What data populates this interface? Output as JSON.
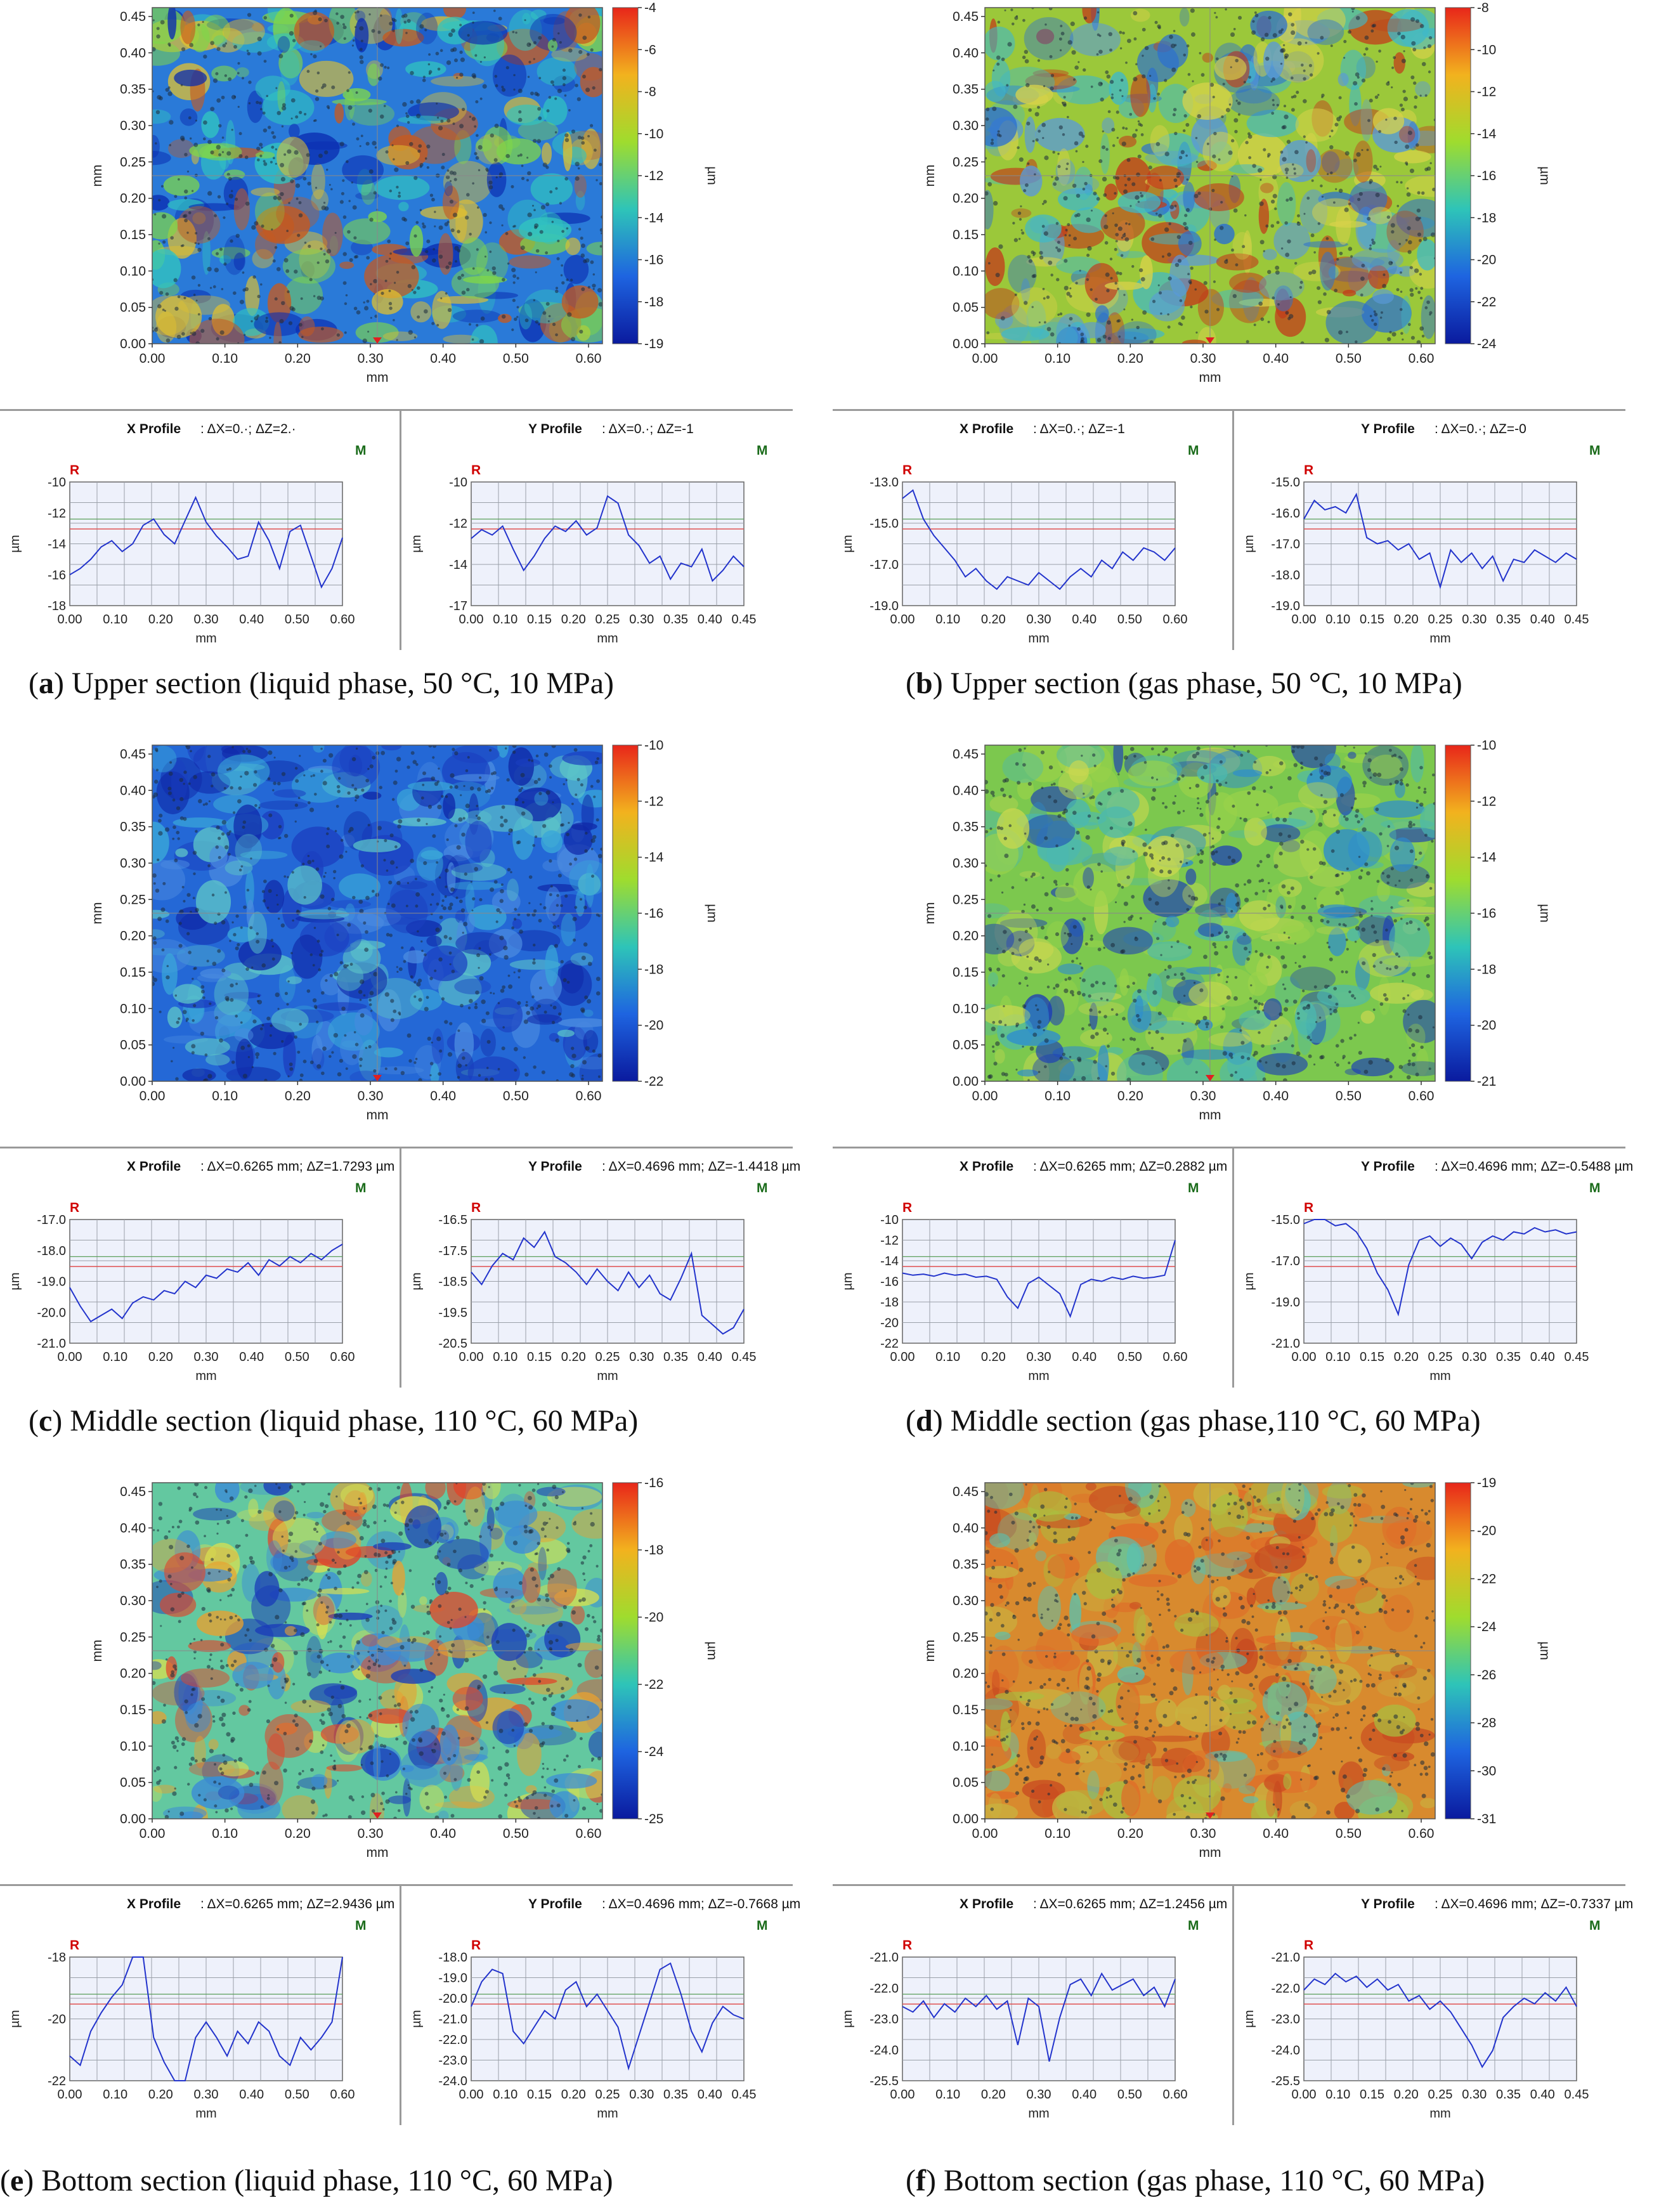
{
  "panels": [
    {
      "id": "a",
      "map": {
        "x_label": "mm",
        "y_label": "mm",
        "cb_label": "µm",
        "x_ticks": [
          "0.00",
          "0.10",
          "0.20",
          "0.30",
          "0.40",
          "0.50",
          "0.60"
        ],
        "y_ticks": [
          "0.00",
          "0.05",
          "0.10",
          "0.15",
          "0.20",
          "0.25",
          "0.30",
          "0.35",
          "0.40",
          "0.45"
        ],
        "cb_ticks": [
          "-4",
          "-6",
          "-8",
          "-10",
          "-12",
          "-14",
          "-16",
          "-18",
          "-19"
        ],
        "base_color": "#2a7ad8",
        "spot_colors": [
          "#31c4c0",
          "#7fd64a",
          "#0a2bb0",
          "#e0c030",
          "#c55a20"
        ]
      },
      "x_profile": {
        "title": "X Profile",
        "delta": "ΔX=0.·; ΔZ=2.·",
        "R": "R",
        "M": "M",
        "x_label": "mm",
        "y_label": "µm",
        "x_ticks": [
          "0.00",
          "0.10",
          "0.20",
          "0.30",
          "0.40",
          "0.50",
          "0.60"
        ],
        "y_ticks": [
          "-10",
          "-12",
          "-14",
          "-16",
          "-18"
        ],
        "trace": [
          -16,
          -15.6,
          -15,
          -14.2,
          -13.8,
          -14.5,
          -14,
          -12.8,
          -12.4,
          -13.4,
          -14,
          -12.5,
          -11,
          -12.6,
          -13.5,
          -14.2,
          -15,
          -14.8,
          -12.6,
          -13.8,
          -15.6,
          -13.2,
          -12.8,
          -14.8,
          -16.8,
          -15.6,
          -13.6
        ]
      },
      "y_profile": {
        "title": "Y Profile",
        "delta": "ΔX=0.·; ΔZ=-1",
        "R": "R",
        "M": "M",
        "x_label": "mm",
        "y_label": "µm",
        "x_ticks": [
          "0.00",
          "0.10",
          "0.15",
          "0.20",
          "0.25",
          "0.30",
          "0.35",
          "0.40",
          "0.45"
        ],
        "y_ticks": [
          "-10",
          "-12",
          "-14",
          "-17"
        ],
        "trace": [
          -13.2,
          -12.7,
          -13,
          -12.5,
          -13.8,
          -15,
          -14.2,
          -13.2,
          -12.5,
          -12.8,
          -12.2,
          -13,
          -12.6,
          -10.8,
          -11.2,
          -13,
          -13.6,
          -14.6,
          -14.2,
          -15.5,
          -14.6,
          -14.8,
          -13.8,
          -15.6,
          -15,
          -14.2,
          -14.8
        ]
      },
      "caption_letter": "a",
      "caption_text": "Upper section (liquid phase, 50 °C, 10 MPa)"
    },
    {
      "id": "b",
      "map": {
        "x_label": "mm",
        "y_label": "mm",
        "cb_label": "µm",
        "x_ticks": [
          "0.00",
          "0.10",
          "0.20",
          "0.30",
          "0.40",
          "0.50",
          "0.60"
        ],
        "y_ticks": [
          "0.00",
          "0.05",
          "0.10",
          "0.15",
          "0.20",
          "0.25",
          "0.30",
          "0.35",
          "0.40",
          "0.45"
        ],
        "cb_ticks": [
          "-8",
          "-10",
          "-12",
          "-14",
          "-16",
          "-18",
          "-20",
          "-22",
          "-24"
        ],
        "base_color": "#9bc83a",
        "spot_colors": [
          "#3fb8c8",
          "#5a9ad8",
          "#d8d24a",
          "#c23a1a",
          "#2b6fd0"
        ]
      },
      "x_profile": {
        "title": "X Profile",
        "delta": "ΔX=0.·; ΔZ=-1",
        "R": "R",
        "M": "M",
        "x_label": "mm",
        "y_label": "µm",
        "x_ticks": [
          "0.00",
          "0.10",
          "0.20",
          "0.30",
          "0.40",
          "0.50",
          "0.60"
        ],
        "y_ticks": [
          "-13.0",
          "-15.0",
          "-17.0",
          "-19.0"
        ],
        "trace": [
          -13.8,
          -13.4,
          -14.8,
          -15.6,
          -16.2,
          -16.8,
          -17.6,
          -17.2,
          -17.8,
          -18.2,
          -17.6,
          -17.8,
          -18,
          -17.4,
          -17.8,
          -18.2,
          -17.6,
          -17.2,
          -17.6,
          -16.8,
          -17.2,
          -16.4,
          -16.8,
          -16.2,
          -16.4,
          -16.8,
          -16.2
        ]
      },
      "y_profile": {
        "title": "Y Profile",
        "delta": "ΔX=0.·; ΔZ=-0",
        "R": "R",
        "M": "M",
        "x_label": "mm",
        "y_label": "µm",
        "x_ticks": [
          "0.00",
          "0.10",
          "0.15",
          "0.20",
          "0.25",
          "0.30",
          "0.35",
          "0.40",
          "0.45"
        ],
        "y_ticks": [
          "-15.0",
          "-16.0",
          "-17.0",
          "-18.0",
          "-19.0"
        ],
        "trace": [
          -16.2,
          -15.6,
          -15.9,
          -15.8,
          -16,
          -15.4,
          -16.8,
          -17,
          -16.9,
          -17.2,
          -17,
          -17.5,
          -17.3,
          -18.4,
          -17.2,
          -17.6,
          -17.3,
          -17.8,
          -17.4,
          -18.2,
          -17.5,
          -17.6,
          -17.2,
          -17.4,
          -17.6,
          -17.3,
          -17.5
        ]
      },
      "caption_letter": "b",
      "caption_text": "Upper section (gas phase, 50 °C, 10 MPa)"
    },
    {
      "id": "c",
      "map": {
        "x_label": "mm",
        "y_label": "mm",
        "cb_label": "µm",
        "x_ticks": [
          "0.00",
          "0.10",
          "0.20",
          "0.30",
          "0.40",
          "0.50",
          "0.60"
        ],
        "y_ticks": [
          "0.00",
          "0.05",
          "0.10",
          "0.15",
          "0.20",
          "0.25",
          "0.30",
          "0.35",
          "0.40",
          "0.45"
        ],
        "cb_ticks": [
          "-10",
          "-12",
          "-14",
          "-16",
          "-18",
          "-20",
          "-22"
        ],
        "base_color": "#2468d6",
        "spot_colors": [
          "#3aa8d8",
          "#1b3fc0",
          "#5cc4c8",
          "#0f28a8",
          "#4b8be0"
        ]
      },
      "x_profile": {
        "title": "X Profile",
        "delta": "ΔX=0.6265 mm; ΔZ=1.7293 µm",
        "R": "R",
        "M": "M",
        "x_label": "mm",
        "y_label": "µm",
        "x_ticks": [
          "0.00",
          "0.10",
          "0.20",
          "0.30",
          "0.40",
          "0.50",
          "0.60"
        ],
        "y_ticks": [
          "-17.0",
          "-18.0",
          "-19.0",
          "-20.0",
          "-21.0"
        ],
        "trace": [
          -19.2,
          -19.8,
          -20.3,
          -20.1,
          -19.9,
          -20.2,
          -19.7,
          -19.5,
          -19.6,
          -19.3,
          -19.4,
          -19,
          -19.2,
          -18.8,
          -18.9,
          -18.6,
          -18.7,
          -18.4,
          -18.8,
          -18.3,
          -18.5,
          -18.2,
          -18.4,
          -18.1,
          -18.3,
          -18,
          -17.8
        ]
      },
      "y_profile": {
        "title": "Y Profile",
        "delta": "ΔX=0.4696 mm; ΔZ=-1.4418 µm",
        "R": "R",
        "M": "M",
        "x_label": "mm",
        "y_label": "µm",
        "x_ticks": [
          "0.00",
          "0.10",
          "0.15",
          "0.20",
          "0.25",
          "0.30",
          "0.35",
          "0.40",
          "0.45"
        ],
        "y_ticks": [
          "-16.5",
          "-17.5",
          "-18.5",
          "-19.5",
          "-20.5"
        ],
        "trace": [
          -18.2,
          -18.6,
          -18,
          -17.6,
          -17.8,
          -17.1,
          -17.4,
          -16.9,
          -17.7,
          -17.9,
          -18.2,
          -18.6,
          -18.1,
          -18.5,
          -18.8,
          -18.2,
          -18.7,
          -18.3,
          -18.9,
          -19.1,
          -18.4,
          -17.6,
          -19.6,
          -19.9,
          -20.2,
          -20,
          -19.4
        ]
      },
      "caption_letter": "c",
      "caption_text": "Middle section (liquid phase, 110 °C, 60 MPa)"
    },
    {
      "id": "d",
      "map": {
        "x_label": "mm",
        "y_label": "mm",
        "cb_label": "µm",
        "x_ticks": [
          "0.00",
          "0.10",
          "0.20",
          "0.30",
          "0.40",
          "0.50",
          "0.60"
        ],
        "y_ticks": [
          "0.00",
          "0.05",
          "0.10",
          "0.15",
          "0.20",
          "0.25",
          "0.30",
          "0.35",
          "0.40",
          "0.45"
        ],
        "cb_ticks": [
          "-10",
          "-12",
          "-14",
          "-16",
          "-18",
          "-20",
          "-21"
        ],
        "base_color": "#7cc84e",
        "spot_colors": [
          "#4bb8b0",
          "#9ad24a",
          "#2c8cd0",
          "#1a3bb8",
          "#c8d850"
        ]
      },
      "x_profile": {
        "title": "X Profile",
        "delta": "ΔX=0.6265 mm; ΔZ=0.2882 µm",
        "R": "R",
        "M": "M",
        "x_label": "mm",
        "y_label": "µm",
        "x_ticks": [
          "0.00",
          "0.10",
          "0.20",
          "0.30",
          "0.40",
          "0.50",
          "0.60"
        ],
        "y_ticks": [
          "-10",
          "-12",
          "-14",
          "-16",
          "-18",
          "-20",
          "-22"
        ],
        "trace": [
          -15.2,
          -15.4,
          -15.3,
          -15.5,
          -15.2,
          -15.4,
          -15.3,
          -15.6,
          -15.5,
          -15.8,
          -17.5,
          -18.6,
          -16.2,
          -15.6,
          -16.4,
          -17.2,
          -19.4,
          -16.3,
          -15.8,
          -16,
          -15.6,
          -15.8,
          -15.5,
          -15.7,
          -15.6,
          -15.4,
          -12
        ]
      },
      "y_profile": {
        "title": "Y Profile",
        "delta": "ΔX=0.4696 mm; ΔZ=-0.5488 µm",
        "R": "R",
        "M": "M",
        "x_label": "mm",
        "y_label": "µm",
        "x_ticks": [
          "0.00",
          "0.10",
          "0.15",
          "0.20",
          "0.25",
          "0.30",
          "0.35",
          "0.40",
          "0.45"
        ],
        "y_ticks": [
          "-15.0",
          "-17.0",
          "-19.0",
          "-21.0"
        ],
        "trace": [
          -15.2,
          -15,
          -14.8,
          -15.3,
          -15.2,
          -15.6,
          -16.4,
          -17.6,
          -18.4,
          -19.6,
          -17.2,
          -16,
          -15.8,
          -16.3,
          -15.9,
          -16.2,
          -16.9,
          -16.1,
          -15.8,
          -16,
          -15.6,
          -15.7,
          -15.4,
          -15.6,
          -15.5,
          -15.7,
          -15.6
        ]
      },
      "caption_letter": "d",
      "caption_text": "Middle section (gas phase,110 °C, 60 MPa)"
    },
    {
      "id": "e",
      "map": {
        "x_label": "mm",
        "y_label": "mm",
        "cb_label": "µm",
        "x_ticks": [
          "0.00",
          "0.10",
          "0.20",
          "0.30",
          "0.40",
          "0.50",
          "0.60"
        ],
        "y_ticks": [
          "0.00",
          "0.05",
          "0.10",
          "0.15",
          "0.20",
          "0.25",
          "0.30",
          "0.35",
          "0.40",
          "0.45"
        ],
        "cb_ticks": [
          "-16",
          "-18",
          "-20",
          "-22",
          "-24",
          "-25"
        ],
        "base_color": "#63c8a0",
        "spot_colors": [
          "#e0442a",
          "#e8a030",
          "#3a8ad8",
          "#d8e050",
          "#1a3bb8"
        ]
      },
      "x_profile": {
        "title": "X Profile",
        "delta": "ΔX=0.6265 mm; ΔZ=2.9436 µm",
        "R": "R",
        "M": "M",
        "x_label": "mm",
        "y_label": "µm",
        "x_ticks": [
          "0.00",
          "0.10",
          "0.20",
          "0.30",
          "0.40",
          "0.50",
          "0.60"
        ],
        "y_ticks": [
          "-18",
          "-20",
          "-22"
        ],
        "trace": [
          -21.2,
          -21.5,
          -20.4,
          -19.8,
          -19.3,
          -18.9,
          -17.6,
          -17.8,
          -20.6,
          -21.4,
          -22.8,
          -22.3,
          -20.6,
          -20.1,
          -20.6,
          -21.2,
          -20.4,
          -20.8,
          -20.1,
          -20.4,
          -21.2,
          -21.5,
          -20.6,
          -21,
          -20.6,
          -20.1,
          -18
        ]
      },
      "y_profile": {
        "title": "Y Profile",
        "delta": "ΔX=0.4696 mm; ΔZ=-0.7668 µm",
        "R": "R",
        "M": "M",
        "x_label": "mm",
        "y_label": "µm",
        "x_ticks": [
          "0.00",
          "0.10",
          "0.15",
          "0.20",
          "0.25",
          "0.30",
          "0.35",
          "0.40",
          "0.45"
        ],
        "y_ticks": [
          "-18.0",
          "-19.0",
          "-20.0",
          "-21.0",
          "-22.0",
          "-23.0",
          "-24.0"
        ],
        "trace": [
          -20.4,
          -19.2,
          -18.6,
          -18.8,
          -21.6,
          -22.2,
          -21.4,
          -20.6,
          -21,
          -19.6,
          -19.2,
          -20.4,
          -19.8,
          -20.6,
          -21.4,
          -23.4,
          -21.8,
          -20.2,
          -18.6,
          -18.3,
          -19.8,
          -21.6,
          -22.6,
          -21.2,
          -20.4,
          -20.8,
          -21
        ]
      },
      "caption_letter": "e",
      "caption_text": "Bottom section (liquid phase, 110 °C, 60 MPa)"
    },
    {
      "id": "f",
      "map": {
        "x_label": "mm",
        "y_label": "mm",
        "cb_label": "µm",
        "x_ticks": [
          "0.00",
          "0.10",
          "0.20",
          "0.30",
          "0.40",
          "0.50",
          "0.60"
        ],
        "y_ticks": [
          "0.00",
          "0.05",
          "0.10",
          "0.15",
          "0.20",
          "0.25",
          "0.30",
          "0.35",
          "0.40",
          "0.45"
        ],
        "cb_ticks": [
          "-19",
          "-20",
          "-22",
          "-24",
          "-26",
          "-28",
          "-30",
          "-31"
        ],
        "base_color": "#d88a2e",
        "spot_colors": [
          "#c8b440",
          "#e06a28",
          "#5ac0b0",
          "#a8c040",
          "#c84a20"
        ]
      },
      "x_profile": {
        "title": "X Profile",
        "delta": "ΔX=0.6265 mm; ΔZ=1.2456 µm",
        "R": "R",
        "M": "M",
        "x_label": "mm",
        "y_label": "µm",
        "x_ticks": [
          "0.00",
          "0.10",
          "0.20",
          "0.30",
          "0.40",
          "0.50",
          "0.60"
        ],
        "y_ticks": [
          "-21.0",
          "-22.0",
          "-23.0",
          "-24.0",
          "-25.5"
        ],
        "trace": [
          -22.8,
          -23,
          -22.6,
          -23.2,
          -22.7,
          -23,
          -22.5,
          -22.8,
          -22.4,
          -22.9,
          -22.6,
          -24.2,
          -22.5,
          -22.8,
          -24.8,
          -23.2,
          -22,
          -21.8,
          -22.4,
          -21.6,
          -22.2,
          -22,
          -21.8,
          -22.4,
          -22.1,
          -22.8,
          -21.8
        ]
      },
      "y_profile": {
        "title": "Y Profile",
        "delta": "ΔX=0.4696 mm; ΔZ=-0.7337 µm",
        "R": "R",
        "M": "M",
        "x_label": "mm",
        "y_label": "µm",
        "x_ticks": [
          "0.00",
          "0.10",
          "0.15",
          "0.20",
          "0.25",
          "0.30",
          "0.35",
          "0.40",
          "0.45"
        ],
        "y_ticks": [
          "-21.0",
          "-22.0",
          "-23.0",
          "-24.0",
          "-25.5"
        ],
        "trace": [
          -22.2,
          -21.8,
          -22,
          -21.6,
          -21.9,
          -21.7,
          -22.1,
          -21.8,
          -22.2,
          -22,
          -22.6,
          -22.4,
          -22.9,
          -22.6,
          -23,
          -23.6,
          -24.2,
          -25,
          -24.4,
          -23.2,
          -22.8,
          -22.5,
          -22.7,
          -22.3,
          -22.6,
          -22.1,
          -22.8
        ]
      },
      "caption_letter": "f",
      "caption_text": "Bottom section (gas phase, 110 °C, 60 MPa)"
    }
  ]
}
